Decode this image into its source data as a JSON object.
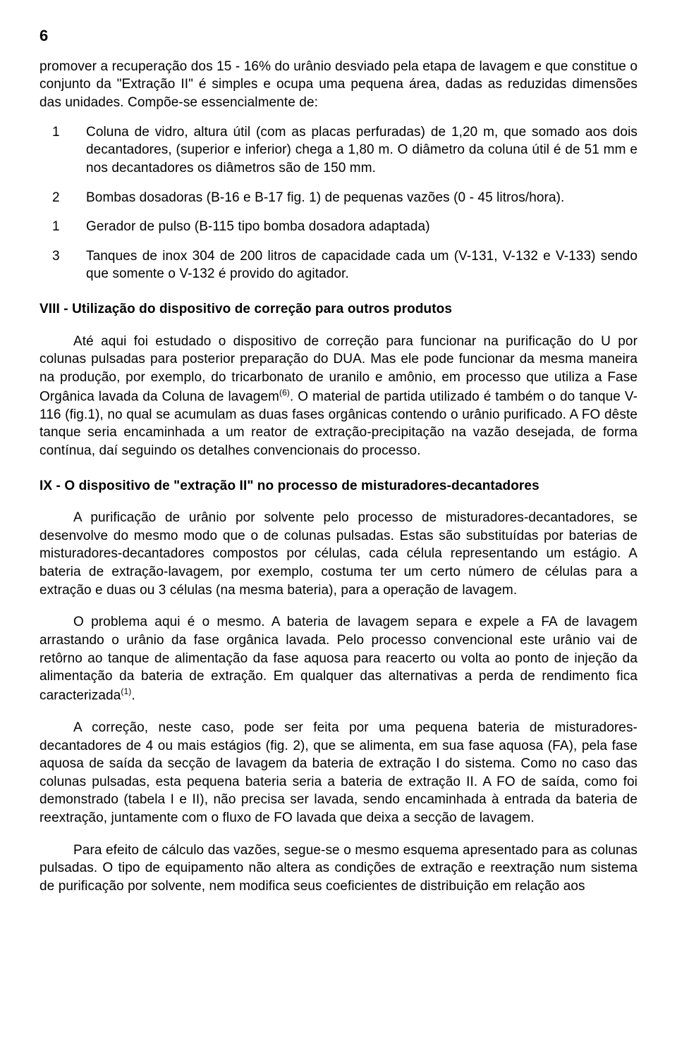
{
  "page_number": "6",
  "intro_paragraph": "promover a recuperação dos 15 - 16% do urânio desviado pela etapa de lavagem e que constitue o conjunto da \"Extração II\" é simples e ocupa uma pequena área, dadas as reduzidas dimensões das unidades. Compõe-se essencialmente de:",
  "list_items": [
    {
      "num": "1",
      "text": "Coluna de vidro, altura útil (com as placas perfuradas) de 1,20 m, que somado aos dois decantadores, (superior e inferior) chega a 1,80 m. O diâmetro da coluna útil é de 51 mm e nos decantadores os diâmetros são de 150 mm."
    },
    {
      "num": "2",
      "text": "Bombas dosadoras (B-16 e B-17 fig. 1) de pequenas vazões (0 - 45 litros/hora)."
    },
    {
      "num": "1",
      "text": "Gerador de pulso (B-115 tipo bomba dosadora adaptada)"
    },
    {
      "num": "3",
      "text": "Tanques de inox 304 de 200 litros de capacidade cada um (V-131, V-132 e V-133) sendo que somente o V-132 é provido do agitador."
    }
  ],
  "section_viii_heading": "VIII - Utilização do dispositivo de correção para outros produtos",
  "section_viii_p1_a": "Até aqui foi estudado o dispositivo de correção para funcionar na purificação do U por colunas pulsadas para posterior preparação do DUA. Mas ele pode funcionar da mesma maneira na produção, por exemplo, do tricarbonato de uranilo e amônio, em processo que utiliza a Fase Orgânica lavada da Coluna de lavagem",
  "section_viii_p1_sup": "(6)",
  "section_viii_p1_b": ". O material de partida utilizado é também o do tanque V-116 (fig.1), no qual se acumulam as duas fases orgânicas contendo o urânio purificado. A FO dêste tanque seria encaminhada a um reator de extração-precipitação na vazão desejada, de forma contínua, daí seguindo os detalhes convencionais do processo.",
  "section_ix_heading": "IX - O dispositivo de \"extração II\" no processo de misturadores-decantadores",
  "section_ix_p1": "A purificação de urânio por solvente pelo processo de misturadores-decantadores, se desenvolve do mesmo modo que o de colunas pulsadas. Estas são substituídas por baterias de misturadores-decantadores compostos por células, cada célula representando um estágio. A bateria de extração-lavagem, por exemplo, costuma ter um certo número de células para a extração e duas ou 3 células (na mesma bateria), para a operação de lavagem.",
  "section_ix_p2_a": "O problema aqui é o mesmo. A bateria de lavagem separa e expele a FA de lavagem arrastando o urânio da fase orgânica lavada. Pelo processo convencional este urânio vai de retôrno ao tanque de alimentação da fase aquosa para reacerto ou volta ao ponto de injeção da alimentação da bateria de extração. Em qualquer das alternativas a perda de rendimento fica caracterizada",
  "section_ix_p2_sup": "(1)",
  "section_ix_p2_b": ".",
  "section_ix_p3": "A correção, neste caso, pode ser feita por uma pequena bateria de misturadores-decantadores de 4 ou mais estágios (fig. 2), que se alimenta, em sua fase aquosa (FA), pela fase aquosa de saída da secção de lavagem da bateria de extração I do sistema. Como no caso das colunas pulsadas, esta pequena bateria seria a bateria de extração II. A FO de saída, como foi demonstrado (tabela I e II), não precisa ser lavada, sendo encaminhada à entrada da bateria de reextração, juntamente com o fluxo de FO lavada que deixa a secção de lavagem.",
  "section_ix_p4": "Para efeito de cálculo das vazões, segue-se o mesmo esquema apresentado para as colunas pulsadas. O tipo de equipamento não altera as condições de extração e reextração num sistema de purificação por solvente, nem modifica seus coeficientes de distribuição em relação aos"
}
